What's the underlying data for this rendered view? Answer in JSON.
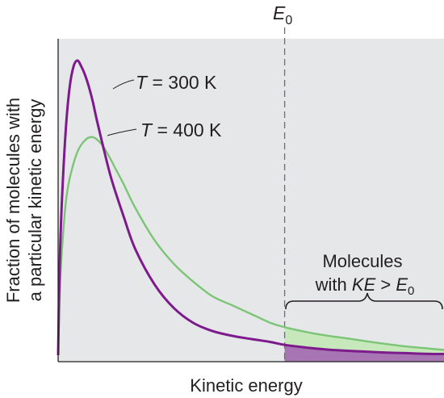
{
  "chart_data": {
    "type": "line",
    "title": "",
    "xlabel": "Kinetic energy",
    "ylabel_line1": "Fraction of molecules with",
    "ylabel_line2": "a particular kinetic energy",
    "xlim": [
      0,
      1
    ],
    "ylim": [
      0,
      1
    ],
    "grid": false,
    "threshold": {
      "label_main": "E",
      "label_sub": "0",
      "x": 0.587
    },
    "series": [
      {
        "name_parts": [
          "T",
          " = 300 K"
        ],
        "color": "#7d1a8c",
        "x": [
          0,
          0.004,
          0.01,
          0.02,
          0.03,
          0.04,
          0.05,
          0.06,
          0.07,
          0.08,
          0.09,
          0.1,
          0.12,
          0.14,
          0.17,
          0.2,
          0.25,
          0.3,
          0.35,
          0.4,
          0.45,
          0.5,
          0.55,
          0.587,
          0.65,
          0.7,
          0.75,
          0.8,
          0.85,
          0.9,
          0.95,
          1.0
        ],
        "values": [
          0.0,
          0.3,
          0.53,
          0.77,
          0.91,
          0.98,
          1.0,
          0.98,
          0.95,
          0.91,
          0.86,
          0.8,
          0.69,
          0.59,
          0.47,
          0.36,
          0.24,
          0.16,
          0.11,
          0.082,
          0.066,
          0.055,
          0.045,
          0.035,
          0.025,
          0.019,
          0.015,
          0.012,
          0.009,
          0.007,
          0.005,
          0.004
        ]
      },
      {
        "name_parts": [
          "T",
          " = 400 K"
        ],
        "color": "#7cc576",
        "x": [
          0,
          0.004,
          0.01,
          0.02,
          0.03,
          0.05,
          0.07,
          0.09,
          0.11,
          0.13,
          0.15,
          0.17,
          0.2,
          0.25,
          0.3,
          0.35,
          0.4,
          0.45,
          0.5,
          0.55,
          0.587,
          0.65,
          0.7,
          0.75,
          0.8,
          0.85,
          0.9,
          0.95,
          1.0
        ],
        "values": [
          0.0,
          0.2,
          0.36,
          0.52,
          0.6,
          0.69,
          0.73,
          0.74,
          0.72,
          0.68,
          0.63,
          0.58,
          0.5,
          0.39,
          0.31,
          0.25,
          0.2,
          0.17,
          0.14,
          0.11,
          0.095,
          0.077,
          0.066,
          0.057,
          0.047,
          0.038,
          0.03,
          0.024,
          0.018
        ]
      }
    ],
    "bracket_label_line1": "Molecules",
    "bracket_label_line2_prefix": "with ",
    "bracket_label_italic": "KE",
    "bracket_label_op": " > ",
    "bracket_label_E": "E",
    "bracket_label_sub": "0",
    "colors": {
      "plot_bg": "#e6e7e8",
      "shade_T300": "#a775b4",
      "shade_T400": "#c6e8ba",
      "axis": "#231f20",
      "dashed": "#6d6e71"
    }
  }
}
